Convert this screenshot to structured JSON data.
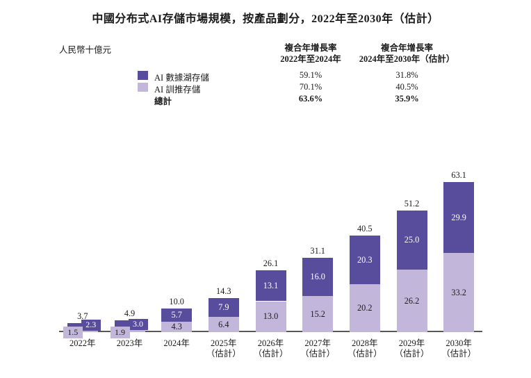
{
  "title": "中國分布式AI存儲市場規模，按產品劃分，2022年至2030年（估計）",
  "unit_label": "人民幣十億元",
  "cagr_table": {
    "col1_header_line1": "複合年增長率",
    "col1_header_line2": "2022年至2024年",
    "col2_header_line1": "複合年增長率",
    "col2_header_line2": "2024年至2030年（估計）",
    "rows": [
      {
        "label": "AI 數據湖存儲",
        "swatch": "dark-purple",
        "col1": "59.1%",
        "col2": "31.8%"
      },
      {
        "label": "AI 訓推存儲",
        "swatch": "light-purple",
        "col1": "70.1%",
        "col2": "40.5%"
      },
      {
        "label": "總計",
        "swatch": "none",
        "col1": "63.6%",
        "col2": "35.9%"
      }
    ]
  },
  "colors": {
    "dark_purple": "#584C9D",
    "light_purple": "#C3B6DB",
    "axis": "#58585A",
    "text": "#1a1a1a"
  },
  "chart_data": {
    "type": "bar",
    "stacked": true,
    "title": "中國分布式AI存儲市場規模，按產品劃分，2022年至2030年（估計）",
    "ylabel": "人民幣十億元",
    "ylim": [
      0,
      70
    ],
    "grid": false,
    "legend_position": "top-left",
    "categories": [
      "2022年",
      "2023年",
      "2024年",
      "2025年",
      "2026年",
      "2027年",
      "2028年",
      "2029年",
      "2030年"
    ],
    "category_sublabels": [
      "",
      "",
      "",
      "（估計）",
      "（估計）",
      "（估計）",
      "（估計）",
      "（估計）",
      "（估計）"
    ],
    "series": [
      {
        "name": "AI 訓推存儲",
        "color": "#C3B6DB",
        "values": [
          1.5,
          1.9,
          4.3,
          6.4,
          13.0,
          15.2,
          20.2,
          26.2,
          33.2
        ]
      },
      {
        "name": "AI 數據湖存儲",
        "color": "#584C9D",
        "values": [
          2.3,
          3.0,
          5.7,
          7.9,
          13.1,
          16.0,
          20.3,
          25.0,
          29.9
        ]
      }
    ],
    "totals": [
      3.7,
      4.9,
      10.0,
      14.3,
      26.1,
      31.1,
      40.5,
      51.2,
      63.1
    ]
  }
}
